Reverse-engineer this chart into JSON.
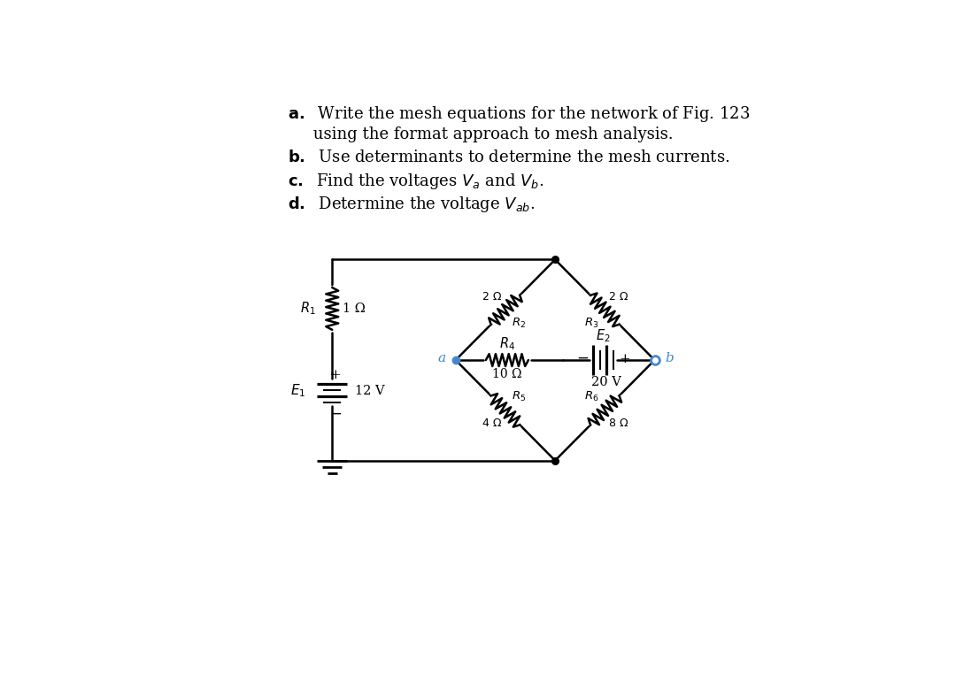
{
  "bg_color": "#ffffff",
  "text_color": "#000000",
  "line_color": "#000000",
  "highlight_color": "#4488cc",
  "R1_label": "$R_1$",
  "R1_val": "1 Ω",
  "R2_label": "$R_2$",
  "R2_val": "2 Ω",
  "R3_label": "$R_3$",
  "R3_val": "2 Ω",
  "R4_label": "$R_4$",
  "R4_val": "10 Ω",
  "R5_label": "$R_5$",
  "R5_val": "4 Ω",
  "R6_label": "$R_6$",
  "R6_val": "8 Ω",
  "E1_label": "$E_1$",
  "E1_val": "12 V",
  "E2_label": "$E_2$",
  "E2_val": "20 V",
  "node_a": "a",
  "node_b": "b",
  "text_lines": [
    [
      "a.",
      "  Write the mesh equations for the network of Fig. 123"
    ],
    [
      "",
      "     using the format approach to mesh analysis."
    ],
    [
      "b.",
      "  Use determinants to determine the mesh currents."
    ],
    [
      "c.",
      "  Find the voltages $V_a$ and $V_b$."
    ],
    [
      "d.",
      "  Determine the voltage $V_{ab}$."
    ]
  ]
}
